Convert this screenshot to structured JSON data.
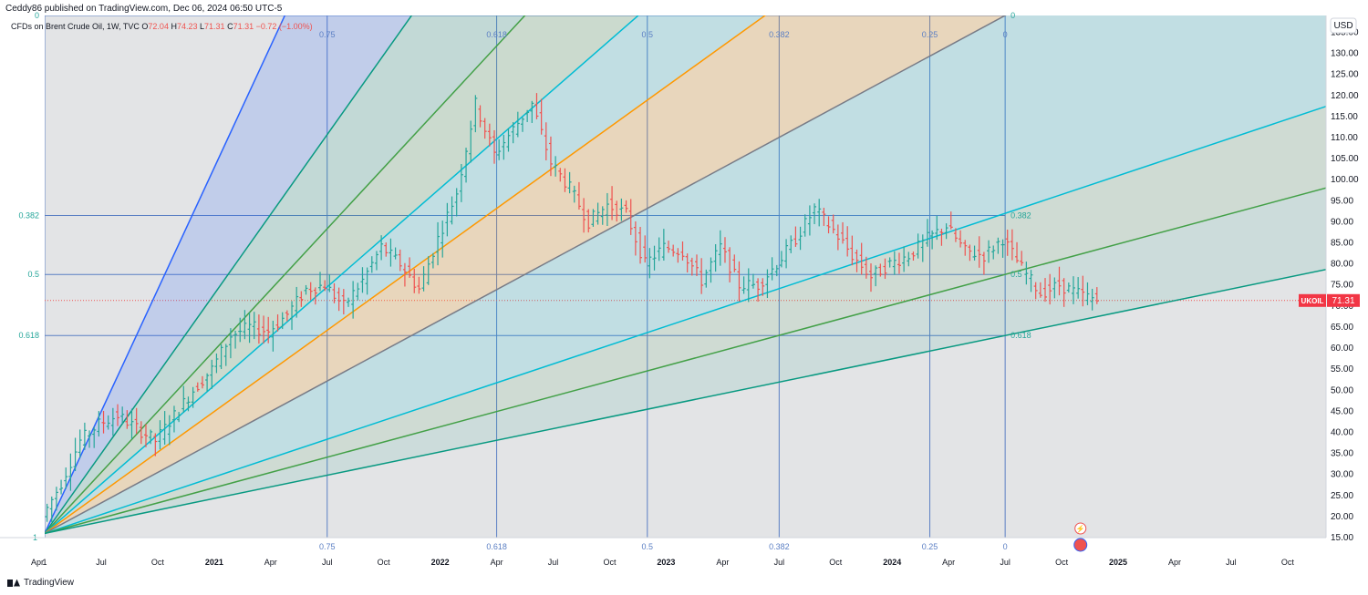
{
  "header": {
    "publisher_line": "Ceddy86 published on TradingView.com, Dec 06, 2024 06:50 UTC-5"
  },
  "legend": {
    "symbol_text": "CFDs on Brent Crude Oil, 1W, TVC",
    "open_label": "O",
    "open_value": "72.04",
    "high_label": "H",
    "high_value": "74.23",
    "low_label": "L",
    "low_value": "71.31",
    "close_label": "C",
    "close_value": "71.31",
    "change_text": "−0.72 (−1.00%)"
  },
  "price_scale": {
    "currency": "USD",
    "ticks": [
      "135.00",
      "130.00",
      "125.00",
      "120.00",
      "115.00",
      "110.00",
      "105.00",
      "100.00",
      "95.00",
      "90.00",
      "85.00",
      "80.00",
      "75.00",
      "70.00",
      "65.00",
      "60.00",
      "55.00",
      "50.00",
      "45.00",
      "40.00",
      "35.00",
      "30.00",
      "25.00",
      "20.00",
      "15.00"
    ],
    "last_symbol": "UKOIL",
    "last_price": "71.31"
  },
  "time_scale": {
    "ticks": [
      "Apr",
      "1",
      "Jul",
      "Oct",
      "2021",
      "Apr",
      "Jul",
      "Oct",
      "2022",
      "Apr",
      "Jul",
      "Oct",
      "2023",
      "Apr",
      "Jul",
      "Oct",
      "2024",
      "Apr",
      "Jul",
      "Oct",
      "2025",
      "Apr",
      "Jul",
      "Oct"
    ]
  },
  "colors": {
    "up": "#26a69a",
    "down": "#ef5350",
    "blue_line": "#5b7fc4",
    "last_price_bg": "#f23645",
    "grey_zone": "#e3e4e6",
    "fan_blue": "#2962ff",
    "fan_teal_dark": "#089981",
    "fan_green": "#43a047",
    "fan_cyan": "#00bcd4",
    "fan_orange": "#ff9800",
    "fan_grey": "#787b86"
  },
  "icons": {
    "tradingview_logo": "tradingview-logo-icon",
    "flash": "flash-icon",
    "flag": "us-flag-icon"
  },
  "footer": {
    "brand": "TradingView"
  },
  "chart_data": {
    "type": "candlestick-weekly-with-fib-speed-resistance-fan",
    "symbol": "UKOIL",
    "timeframe": "1W",
    "y_axis": {
      "min": 15,
      "max": 139,
      "unit": "USD"
    },
    "x_axis": {
      "start": "2020-04",
      "end": "2025-11"
    },
    "fib_fan": {
      "origin": {
        "date": "2020-04",
        "price": 16.0
      },
      "extent": {
        "date": "2024-07",
        "price": 139.0
      },
      "vertical_levels": [
        {
          "label": "0.75",
          "date": "2021-07"
        },
        {
          "label": "0.618",
          "date": "2022-04"
        },
        {
          "label": "0.5",
          "date": "2022-12"
        },
        {
          "label": "0.382",
          "date": "2023-07"
        },
        {
          "label": "0.25",
          "date": "2024-03"
        },
        {
          "label": "0",
          "date": "2024-07"
        }
      ],
      "horizontal_levels": [
        {
          "label": "0",
          "price": 139.0
        },
        {
          "label": "0.382",
          "price": 91.5
        },
        {
          "label": "0.5",
          "price": 77.5
        },
        {
          "label": "0.618",
          "price": 63.0
        }
      ],
      "right_labels": [
        {
          "label": "0",
          "price": 139.0
        },
        {
          "label": "0.382",
          "price": 91.5
        },
        {
          "label": "0.5",
          "price": 77.5
        },
        {
          "label": "0.618",
          "price": 63.0
        }
      ]
    },
    "price_path": [
      [
        "2020-04",
        20
      ],
      [
        "2020-05",
        28
      ],
      [
        "2020-06",
        38
      ],
      [
        "2020-07",
        42
      ],
      [
        "2020-08",
        44
      ],
      [
        "2020-09",
        41
      ],
      [
        "2020-10",
        38
      ],
      [
        "2020-11",
        44
      ],
      [
        "2020-12",
        50
      ],
      [
        "2021-01",
        55
      ],
      [
        "2021-02",
        63
      ],
      [
        "2021-03",
        65
      ],
      [
        "2021-04",
        64
      ],
      [
        "2021-05",
        68
      ],
      [
        "2021-06",
        74
      ],
      [
        "2021-07",
        75
      ],
      [
        "2021-08",
        70
      ],
      [
        "2021-09",
        76
      ],
      [
        "2021-10",
        84
      ],
      [
        "2021-11",
        80
      ],
      [
        "2021-12",
        74
      ],
      [
        "2022-01",
        86
      ],
      [
        "2022-02",
        97
      ],
      [
        "2022-03",
        118
      ],
      [
        "2022-04",
        106
      ],
      [
        "2022-05",
        112
      ],
      [
        "2022-06",
        118
      ],
      [
        "2022-07",
        104
      ],
      [
        "2022-08",
        98
      ],
      [
        "2022-09",
        90
      ],
      [
        "2022-10",
        94
      ],
      [
        "2022-11",
        92
      ],
      [
        "2022-12",
        80
      ],
      [
        "2023-01",
        84
      ],
      [
        "2023-02",
        83
      ],
      [
        "2023-03",
        76
      ],
      [
        "2023-04",
        84
      ],
      [
        "2023-05",
        75
      ],
      [
        "2023-06",
        75
      ],
      [
        "2023-07",
        80
      ],
      [
        "2023-08",
        86
      ],
      [
        "2023-09",
        93
      ],
      [
        "2023-10",
        88
      ],
      [
        "2023-11",
        82
      ],
      [
        "2023-12",
        77
      ],
      [
        "2024-01",
        80
      ],
      [
        "2024-02",
        82
      ],
      [
        "2024-03",
        86
      ],
      [
        "2024-04",
        89
      ],
      [
        "2024-05",
        83
      ],
      [
        "2024-06",
        82
      ],
      [
        "2024-07",
        86
      ],
      [
        "2024-08",
        79
      ],
      [
        "2024-09",
        73
      ],
      [
        "2024-10",
        75
      ],
      [
        "2024-11",
        73
      ],
      [
        "2024-12",
        71.31
      ]
    ],
    "last_close": 71.31
  }
}
